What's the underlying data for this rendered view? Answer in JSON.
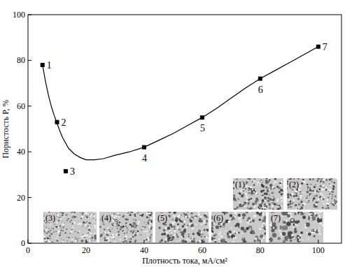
{
  "chart_data": {
    "type": "scatter",
    "x_label": "Плотность тока, мА/см²",
    "y_label": "Пористость P, %",
    "xlim": [
      0,
      108
    ],
    "ylim": [
      0,
      100
    ],
    "xticks": [
      0,
      20,
      40,
      60,
      80,
      100
    ],
    "yticks": [
      0,
      20,
      40,
      60,
      80,
      100
    ],
    "grid": false,
    "series": [
      {
        "type": "scatter",
        "marker": "square",
        "color": "#000000",
        "x": [
          5,
          10,
          13,
          40,
          60,
          80,
          100
        ],
        "values": [
          78,
          53,
          31.5,
          42,
          55,
          72,
          86
        ],
        "labels": [
          "1",
          "2",
          "3",
          "4",
          "5",
          "6",
          "7"
        ]
      },
      {
        "type": "line",
        "line_style": "solid",
        "color": "#000000",
        "x": [
          5,
          6,
          7,
          8,
          9,
          10,
          11,
          12,
          14,
          16,
          18,
          20,
          23,
          26,
          30,
          35,
          40,
          45,
          50,
          55,
          60,
          65,
          70,
          75,
          80,
          85,
          90,
          95,
          100
        ],
        "values": [
          78,
          71,
          65,
          60,
          56,
          52.5,
          49,
          46,
          41.5,
          39,
          37.5,
          36.5,
          36.5,
          37,
          38.5,
          40,
          42,
          45,
          48,
          51.5,
          55,
          59,
          63.5,
          68,
          72,
          75.5,
          79,
          82.5,
          86
        ]
      }
    ],
    "insets": [
      "(1)",
      "(2)",
      "(3)",
      "(4)",
      "(5)",
      "(6)",
      "(7)"
    ]
  }
}
